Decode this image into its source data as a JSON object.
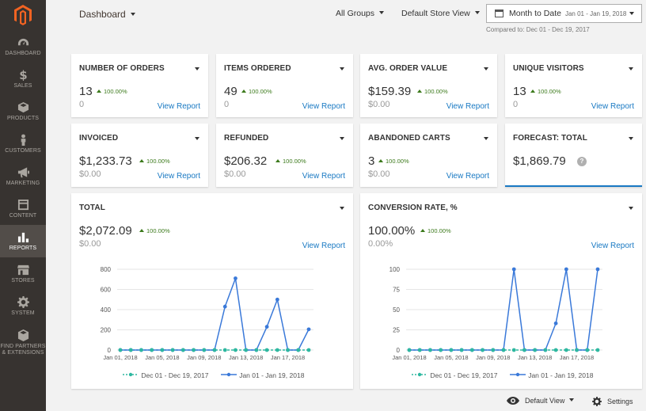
{
  "sidebar": {
    "items": [
      {
        "label": "DASHBOARD",
        "icon": "dashboard-icon"
      },
      {
        "label": "SALES",
        "icon": "dollar-icon"
      },
      {
        "label": "PRODUCTS",
        "icon": "cube-icon"
      },
      {
        "label": "CUSTOMERS",
        "icon": "person-icon"
      },
      {
        "label": "MARKETING",
        "icon": "megaphone-icon"
      },
      {
        "label": "CONTENT",
        "icon": "layout-icon"
      },
      {
        "label": "REPORTS",
        "icon": "bar-chart-icon",
        "active": true
      },
      {
        "label": "STORES",
        "icon": "store-icon"
      },
      {
        "label": "SYSTEM",
        "icon": "gear-icon"
      },
      {
        "label": "FIND PARTNERS & EXTENSIONS",
        "icon": "box-icon"
      }
    ]
  },
  "header": {
    "title": "Dashboard",
    "groups": "All Groups",
    "store_view": "Default Store View",
    "date_range": "Month to Date",
    "date_detail": "Jan 01 - Jan 19, 2018",
    "compared": "Compared to: Dec 01 - Dec 19, 2017"
  },
  "colors": {
    "accent": "#1979c3",
    "positive": "#3c7a1c",
    "sidebar_bg": "#373330",
    "series_current": "#3a79d9",
    "series_previous": "#2eb8a0"
  },
  "cards": {
    "orders": {
      "title": "NUMBER OF ORDERS",
      "value": "13",
      "pct": "100.00%",
      "prev": "0",
      "link": "View Report"
    },
    "items": {
      "title": "ITEMS ORDERED",
      "value": "49",
      "pct": "100.00%",
      "prev": "0",
      "link": "View Report"
    },
    "aov": {
      "title": "AVG. ORDER VALUE",
      "value": "$159.39",
      "pct": "100.00%",
      "prev": "$0.00",
      "link": "View Report"
    },
    "visitors": {
      "title": "UNIQUE VISITORS",
      "value": "13",
      "pct": "100.00%",
      "prev": "0",
      "link": "View Report"
    },
    "invoiced": {
      "title": "INVOICED",
      "value": "$1,233.73",
      "pct": "100.00%",
      "prev": "$0.00",
      "link": "View Report"
    },
    "refunded": {
      "title": "REFUNDED",
      "value": "$206.32",
      "pct": "100.00%",
      "prev": "$0.00",
      "link": "View Report"
    },
    "abandoned": {
      "title": "ABANDONED CARTS",
      "value": "3",
      "pct": "100.00%",
      "prev": "$0.00",
      "link": "View Report"
    },
    "forecast": {
      "title": "FORECAST: TOTAL",
      "value": "$1,869.79",
      "help": "?"
    },
    "total": {
      "title": "TOTAL",
      "value": "$2,072.09",
      "pct": "100.00%",
      "prev": "$0.00",
      "link": "View Report"
    },
    "conversion": {
      "title": "CONVERSION RATE, %",
      "value": "100.00%",
      "pct": "100.00%",
      "prev": "0.00%",
      "link": "View Report"
    }
  },
  "chart_data": [
    {
      "type": "line",
      "title": "TOTAL",
      "x": [
        "Jan 01, 2018",
        "Jan 02",
        "Jan 03",
        "Jan 04",
        "Jan 05, 2018",
        "Jan 06",
        "Jan 07",
        "Jan 08",
        "Jan 09, 2018",
        "Jan 10",
        "Jan 11",
        "Jan 12",
        "Jan 13, 2018",
        "Jan 14",
        "Jan 15",
        "Jan 16",
        "Jan 17, 2018",
        "Jan 18",
        "Jan 19"
      ],
      "tick_labels": [
        "Jan 01, 2018",
        "Jan 05, 2018",
        "Jan 09, 2018",
        "Jan 13, 2018",
        "Jan 17, 2018"
      ],
      "ylim": [
        0,
        800
      ],
      "yticks": [
        0,
        200,
        400,
        600,
        800
      ],
      "series": [
        {
          "name": "Dec 01 - Dec 19, 2017",
          "values": [
            0,
            0,
            0,
            0,
            0,
            0,
            0,
            0,
            0,
            0,
            0,
            0,
            0,
            0,
            0,
            0,
            0,
            0,
            0
          ]
        },
        {
          "name": "Jan 01 - Jan 19, 2018",
          "values": [
            0,
            0,
            0,
            0,
            0,
            0,
            0,
            0,
            0,
            0,
            430,
            710,
            0,
            0,
            230,
            500,
            0,
            0,
            205
          ]
        }
      ]
    },
    {
      "type": "line",
      "title": "CONVERSION RATE, %",
      "x": [
        "Jan 01, 2018",
        "Jan 02",
        "Jan 03",
        "Jan 04",
        "Jan 05, 2018",
        "Jan 06",
        "Jan 07",
        "Jan 08",
        "Jan 09, 2018",
        "Jan 10",
        "Jan 11",
        "Jan 12",
        "Jan 13, 2018",
        "Jan 14",
        "Jan 15",
        "Jan 16",
        "Jan 17, 2018",
        "Jan 18",
        "Jan 19"
      ],
      "tick_labels": [
        "Jan 01, 2018",
        "Jan 05, 2018",
        "Jan 09, 2018",
        "Jan 13, 2018",
        "Jan 17, 2018"
      ],
      "ylim": [
        0,
        100
      ],
      "yticks": [
        0,
        25,
        50,
        75,
        100
      ],
      "series": [
        {
          "name": "Dec 01 - Dec 19, 2017",
          "values": [
            0,
            0,
            0,
            0,
            0,
            0,
            0,
            0,
            0,
            0,
            0,
            0,
            0,
            0,
            0,
            0,
            0,
            0,
            0
          ]
        },
        {
          "name": "Jan 01 - Jan 19, 2018",
          "values": [
            0,
            0,
            0,
            0,
            0,
            0,
            0,
            0,
            0,
            0,
            100,
            0,
            0,
            0,
            33,
            100,
            0,
            0,
            100
          ]
        }
      ]
    }
  ],
  "footer": {
    "view": "Default View",
    "settings": "Settings"
  }
}
